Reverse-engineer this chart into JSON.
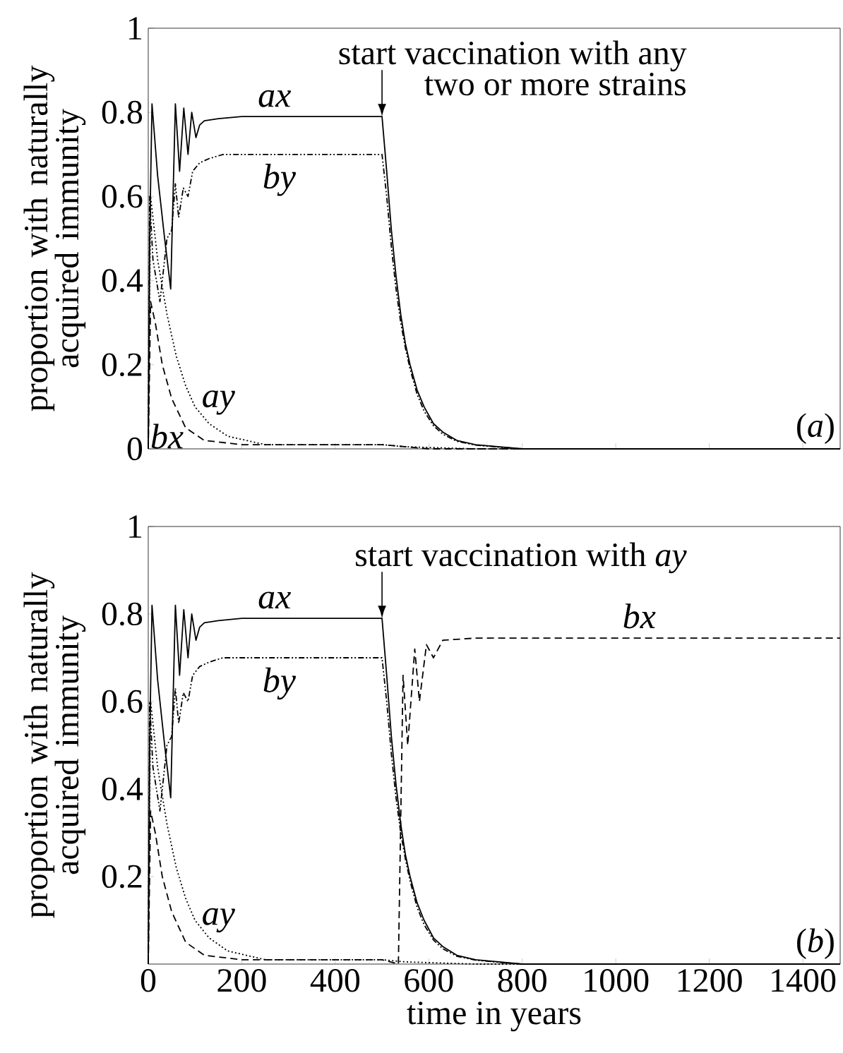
{
  "chart_data": [
    {
      "type": "line",
      "ylabel": "proportion with naturally acquired immunity",
      "xlim": [
        0,
        1480
      ],
      "ylim": [
        0,
        1
      ],
      "xticks": [
        0,
        200,
        400,
        600,
        800,
        1000,
        1200,
        1400
      ],
      "yticks": [
        0,
        0.2,
        0.4,
        0.6,
        0.8,
        1
      ],
      "tick_labels": "y",
      "annotations": [
        {
          "text": "start vaccination with any two or more strains",
          "x": 500,
          "y": 0.79
        },
        "(*a*)"
      ],
      "series": [
        {
          "name": "ax",
          "color": "#000000",
          "line_style": "solid",
          "x": [
            0,
            3,
            8,
            20,
            35,
            48,
            58,
            67,
            76,
            85,
            93,
            102,
            110,
            120,
            150,
            200,
            300,
            400,
            500,
            510,
            520,
            530,
            540,
            550,
            560,
            575,
            590,
            610,
            630,
            660,
            700,
            750,
            800,
            900,
            1480
          ],
          "values": [
            0,
            0.5,
            0.82,
            0.65,
            0.5,
            0.38,
            0.82,
            0.66,
            0.81,
            0.7,
            0.8,
            0.74,
            0.77,
            0.78,
            0.785,
            0.79,
            0.79,
            0.79,
            0.79,
            0.66,
            0.52,
            0.41,
            0.32,
            0.25,
            0.2,
            0.14,
            0.1,
            0.06,
            0.04,
            0.02,
            0.01,
            0.005,
            0,
            0,
            0
          ]
        },
        {
          "name": "by",
          "color": "#000000",
          "line_style": "dashdotdot",
          "x": [
            0,
            3,
            10,
            25,
            40,
            50,
            58,
            65,
            75,
            85,
            95,
            110,
            130,
            160,
            200,
            300,
            400,
            500,
            510,
            520,
            530,
            540,
            550,
            560,
            575,
            590,
            610,
            630,
            660,
            700,
            750,
            800,
            900,
            1480
          ],
          "values": [
            0,
            0.6,
            0.45,
            0.35,
            0.5,
            0.52,
            0.63,
            0.55,
            0.62,
            0.6,
            0.66,
            0.68,
            0.69,
            0.7,
            0.7,
            0.7,
            0.7,
            0.7,
            0.6,
            0.48,
            0.38,
            0.3,
            0.24,
            0.19,
            0.13,
            0.09,
            0.055,
            0.035,
            0.018,
            0.009,
            0.004,
            0,
            0,
            0
          ]
        },
        {
          "name": "ay",
          "color": "#000000",
          "line_style": "dotted",
          "x": [
            0,
            5,
            20,
            40,
            60,
            80,
            100,
            130,
            170,
            250,
            500,
            550,
            700,
            1480
          ],
          "values": [
            0,
            0.6,
            0.45,
            0.32,
            0.22,
            0.15,
            0.1,
            0.06,
            0.03,
            0.01,
            0.01,
            0.005,
            0,
            0
          ]
        },
        {
          "name": "bx",
          "color": "#000000",
          "line_style": "dashed",
          "x": [
            0,
            5,
            15,
            30,
            50,
            80,
            120,
            200,
            500,
            600,
            1480
          ],
          "values": [
            0,
            0.35,
            0.3,
            0.2,
            0.12,
            0.05,
            0.02,
            0.01,
            0.01,
            0,
            0
          ]
        }
      ]
    },
    {
      "type": "line",
      "xlabel": "time in years",
      "ylabel": "proportion with naturally acquired immunity",
      "xlim": [
        0,
        1480
      ],
      "ylim": [
        0,
        1
      ],
      "xticks": [
        0,
        200,
        400,
        600,
        800,
        1000,
        1200,
        1400
      ],
      "yticks": [
        0.2,
        0.4,
        0.6,
        0.8,
        1
      ],
      "annotations": [
        {
          "text": "start vaccination with *ay*",
          "x": 500,
          "y": 0.79
        },
        "(*b*)"
      ],
      "series": [
        {
          "name": "ax",
          "color": "#000000",
          "line_style": "solid",
          "x": [
            0,
            3,
            8,
            20,
            35,
            48,
            58,
            67,
            76,
            85,
            93,
            102,
            110,
            120,
            150,
            200,
            300,
            400,
            500,
            510,
            520,
            530,
            540,
            550,
            560,
            575,
            590,
            610,
            630,
            660,
            700,
            750,
            800,
            900,
            1480
          ],
          "values": [
            0,
            0.5,
            0.82,
            0.65,
            0.5,
            0.38,
            0.82,
            0.66,
            0.81,
            0.7,
            0.8,
            0.74,
            0.77,
            0.78,
            0.785,
            0.79,
            0.79,
            0.79,
            0.79,
            0.66,
            0.52,
            0.41,
            0.32,
            0.25,
            0.2,
            0.14,
            0.1,
            0.06,
            0.04,
            0.02,
            0.01,
            0.005,
            0,
            0,
            0
          ]
        },
        {
          "name": "by",
          "color": "#000000",
          "line_style": "dashdotdot",
          "x": [
            0,
            3,
            10,
            25,
            40,
            50,
            58,
            65,
            75,
            85,
            95,
            110,
            130,
            160,
            200,
            300,
            400,
            500,
            510,
            520,
            530,
            540,
            550,
            560,
            575,
            590,
            610,
            630,
            660,
            700,
            750,
            800,
            900,
            1480
          ],
          "values": [
            0,
            0.6,
            0.45,
            0.35,
            0.5,
            0.52,
            0.63,
            0.55,
            0.62,
            0.6,
            0.66,
            0.68,
            0.69,
            0.7,
            0.7,
            0.7,
            0.7,
            0.7,
            0.6,
            0.48,
            0.38,
            0.3,
            0.24,
            0.19,
            0.13,
            0.09,
            0.055,
            0.035,
            0.018,
            0.009,
            0.004,
            0,
            0,
            0
          ]
        },
        {
          "name": "ay",
          "color": "#000000",
          "line_style": "dotted",
          "x": [
            0,
            5,
            20,
            40,
            60,
            80,
            100,
            130,
            170,
            250,
            500,
            550,
            700,
            1480
          ],
          "values": [
            0,
            0.6,
            0.45,
            0.32,
            0.22,
            0.15,
            0.1,
            0.06,
            0.03,
            0.01,
            0.01,
            0.005,
            0,
            0
          ]
        },
        {
          "name": "bx",
          "color": "#000000",
          "line_style": "dashed",
          "x": [
            0,
            5,
            15,
            30,
            50,
            80,
            120,
            200,
            500,
            535,
            545,
            555,
            570,
            580,
            595,
            610,
            630,
            700,
            1480
          ],
          "values": [
            0,
            0.35,
            0.3,
            0.2,
            0.12,
            0.05,
            0.02,
            0.01,
            0.01,
            0,
            0.66,
            0.5,
            0.72,
            0.6,
            0.73,
            0.7,
            0.74,
            0.745,
            0.745
          ]
        }
      ]
    }
  ]
}
